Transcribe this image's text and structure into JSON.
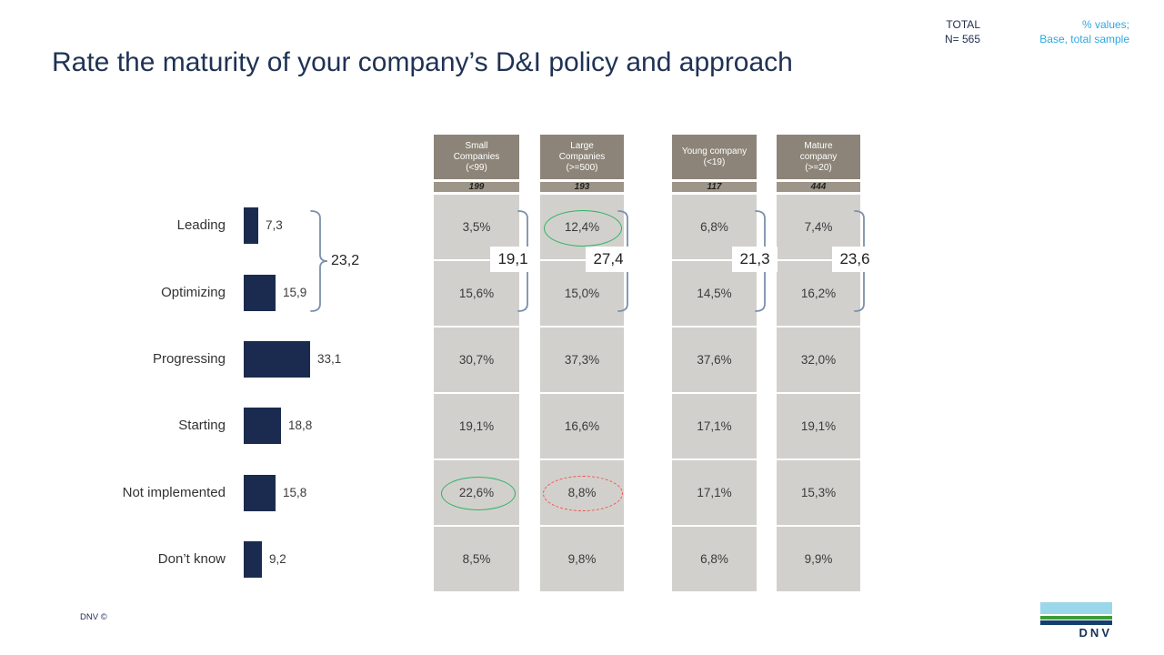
{
  "header": {
    "total_label": "TOTAL",
    "total_n": "N= 565",
    "note_line1": "% values;",
    "note_line2": "Base, total sample"
  },
  "title": "Rate the maturity of your company’s D&I policy and approach",
  "chart_data": {
    "type": "bar",
    "orientation": "horizontal",
    "title": "Rate the maturity of your company’s D&I policy and approach",
    "sample": {
      "label": "TOTAL",
      "n": 565
    },
    "unit_note": "% values; Base, total sample",
    "categories": [
      "Leading",
      "Optimizing",
      "Progressing",
      "Starting",
      "Not implemented",
      "Don’t know"
    ],
    "total": {
      "values": [
        7.3,
        15.9,
        33.1,
        18.8,
        15.8,
        9.2
      ],
      "labels": [
        "7,3",
        "15,9",
        "33,1",
        "18,8",
        "15,8",
        "9,2"
      ]
    },
    "segments": [
      {
        "name": "Small Companies (<99)",
        "label_lines": "Small\nCompanies\n(<99)",
        "base": "199",
        "values": [
          3.5,
          15.6,
          30.7,
          19.1,
          22.6,
          8.5
        ],
        "labels": [
          "3,5%",
          "15,6%",
          "30,7%",
          "19,1%",
          "22,6%",
          "8,5%"
        ]
      },
      {
        "name": "Large Companies (>=500)",
        "label_lines": "Large\nCompanies\n(>=500)",
        "base": "193",
        "values": [
          12.4,
          15.0,
          37.3,
          16.6,
          8.8,
          9.8
        ],
        "labels": [
          "12,4%",
          "15,0%",
          "37,3%",
          "16,6%",
          "8,8%",
          "9,8%"
        ]
      },
      {
        "name": "Young company (<19)",
        "label_lines": "Young company\n(<19)",
        "base": "117",
        "values": [
          6.8,
          14.5,
          37.6,
          17.1,
          17.1,
          6.8
        ],
        "labels": [
          "6,8%",
          "14,5%",
          "37,6%",
          "17,1%",
          "17,1%",
          "6,8%"
        ]
      },
      {
        "name": "Mature company (>=20)",
        "label_lines": "Mature\ncompany\n(>=20)",
        "base": "444",
        "values": [
          7.4,
          16.2,
          32.0,
          19.1,
          15.3,
          9.9
        ],
        "labels": [
          "7,4%",
          "16,2%",
          "32,0%",
          "19,1%",
          "15,3%",
          "9,9%"
        ]
      }
    ],
    "leading_plus_optimizing": {
      "total": "23,2",
      "small": "19,1",
      "large": "27,4",
      "young": "21,3",
      "mature": "23,6"
    },
    "annotations": [
      {
        "target": "Large Companies (>=500) - Leading",
        "value": "12,4%",
        "shape": "ellipse",
        "style": "solid",
        "color": "#2fb463"
      },
      {
        "target": "Small Companies (<99) - Not implemented",
        "value": "22,6%",
        "shape": "ellipse",
        "style": "solid",
        "color": "#2fb463"
      },
      {
        "target": "Large Companies (>=500) - Not implemented",
        "value": "8,8%",
        "shape": "ellipse",
        "style": "dashed",
        "color": "#f0564d"
      }
    ],
    "legend_position": "none",
    "grid": false
  },
  "colors": {
    "title_navy": "#1f3254",
    "bar_navy": "#1b2b4f",
    "accent_blue": "#2ea8df",
    "header_taupe": "#8c8478",
    "base_taupe": "#9d9589",
    "cell_gray": "#d2d0cd",
    "bracket_slate": "#7b90ad",
    "highlight_green": "#2fb463",
    "highlight_red": "#f0564d",
    "logo_lightblue": "#9bd7ea",
    "logo_green": "#3f9c35",
    "logo_navy": "#123f6d"
  },
  "footer": {
    "copyright": "DNV ©",
    "logo_text": "DNV"
  }
}
